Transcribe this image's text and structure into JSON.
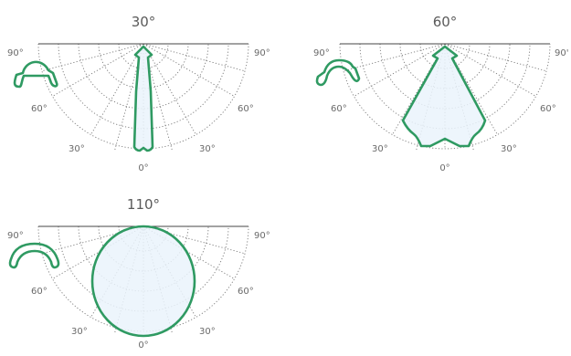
{
  "colors": {
    "outline": "#2f9a62",
    "fill": "#eaf3fc",
    "grid": "#7a7a7a",
    "text": "#5a5a5a"
  },
  "diagrams": [
    {
      "title": "30°",
      "tick_labels": {
        "left90": "90°",
        "right90": "90°",
        "left60": "60°",
        "right60": "60°",
        "left30": "30°",
        "right30": "30°",
        "bottom0": "0°"
      },
      "profile_icon": "lens-profile-30-icon"
    },
    {
      "title": "60°",
      "tick_labels": {
        "left90": "90°",
        "right90": "90'",
        "left60": "60°",
        "right60": "60°",
        "left30": "30°",
        "right30": "30°",
        "bottom0": "0°"
      },
      "profile_icon": "lens-profile-60-icon"
    },
    {
      "title": "110°",
      "tick_labels": {
        "left90": "90°",
        "right90": "90°",
        "left60": "60°",
        "right60": "60°",
        "left30": "30°",
        "right30": "30°",
        "bottom0": "0°"
      },
      "profile_icon": "lens-profile-110-icon"
    }
  ]
}
